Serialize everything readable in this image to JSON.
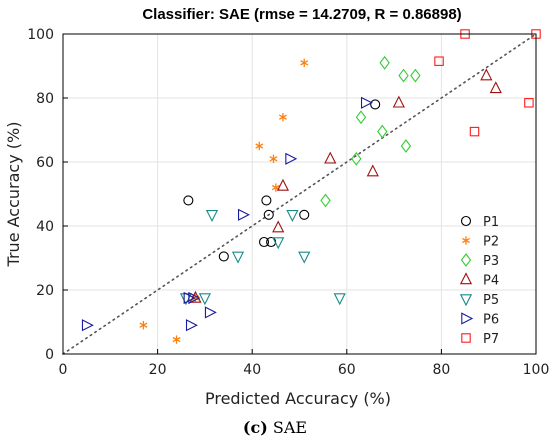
{
  "caption": {
    "label": "(c)",
    "text": "SAE"
  },
  "chart_data": {
    "type": "scatter",
    "title": "Classifier: SAE (rmse = 14.2709, R = 0.86898)",
    "xlabel": "Predicted Accuracy (%)",
    "ylabel": "True Accuracy (%)",
    "xlim": [
      0,
      100
    ],
    "ylim": [
      0,
      100
    ],
    "xticks": [
      "0",
      "20",
      "40",
      "60",
      "80",
      "100"
    ],
    "yticks": [
      "0",
      "20",
      "40",
      "60",
      "80",
      "100"
    ],
    "grid": true,
    "legend_position": "bottom-right",
    "reference_line": {
      "style": "dotted",
      "from": [
        0,
        0
      ],
      "to": [
        100,
        100
      ]
    },
    "series": [
      {
        "name": "P1",
        "marker": "circle",
        "color": "#000000",
        "x": [
          26.5,
          34,
          42.5,
          43,
          43.5,
          44,
          51,
          66
        ],
        "y": [
          48,
          30.5,
          35,
          48,
          43.5,
          35,
          43.5,
          78
        ]
      },
      {
        "name": "P2",
        "marker": "asterisk",
        "color": "#ff7f0e",
        "x": [
          17,
          24,
          28,
          41.5,
          44.5,
          45,
          46.5,
          51
        ],
        "y": [
          9,
          4.5,
          17.5,
          65,
          61,
          52,
          74,
          91
        ]
      },
      {
        "name": "P3",
        "marker": "diamond",
        "color": "#33cc33",
        "x": [
          55.5,
          62,
          63,
          67.5,
          68,
          72,
          72.5,
          74.5
        ],
        "y": [
          48,
          61,
          74,
          69.5,
          91,
          87,
          65,
          87
        ]
      },
      {
        "name": "P4",
        "marker": "triangle-up",
        "color": "#a01010",
        "x": [
          28,
          45.5,
          46.5,
          56.5,
          65.5,
          71,
          89.5,
          91.5
        ],
        "y": [
          17.5,
          39.5,
          52.5,
          61,
          57,
          78.5,
          87,
          83
        ]
      },
      {
        "name": "P5",
        "marker": "triangle-down",
        "color": "#1a8a8a",
        "x": [
          26,
          30,
          31.5,
          37,
          45.5,
          48.5,
          51,
          58.5
        ],
        "y": [
          17.5,
          17.5,
          43.5,
          30.5,
          35,
          43.5,
          30.5,
          17.5
        ]
      },
      {
        "name": "P6",
        "marker": "triangle-right",
        "color": "#1a1aa0",
        "x": [
          5,
          26.5,
          27,
          27.5,
          31,
          38,
          48,
          64
        ],
        "y": [
          9,
          17.5,
          9,
          17.5,
          13,
          43.5,
          61,
          78.5
        ]
      },
      {
        "name": "P7",
        "marker": "square",
        "color": "#ff1a1a",
        "x": [
          79.5,
          85,
          87,
          98.5,
          100
        ],
        "y": [
          91.5,
          100,
          69.5,
          78.5,
          100
        ]
      }
    ]
  }
}
